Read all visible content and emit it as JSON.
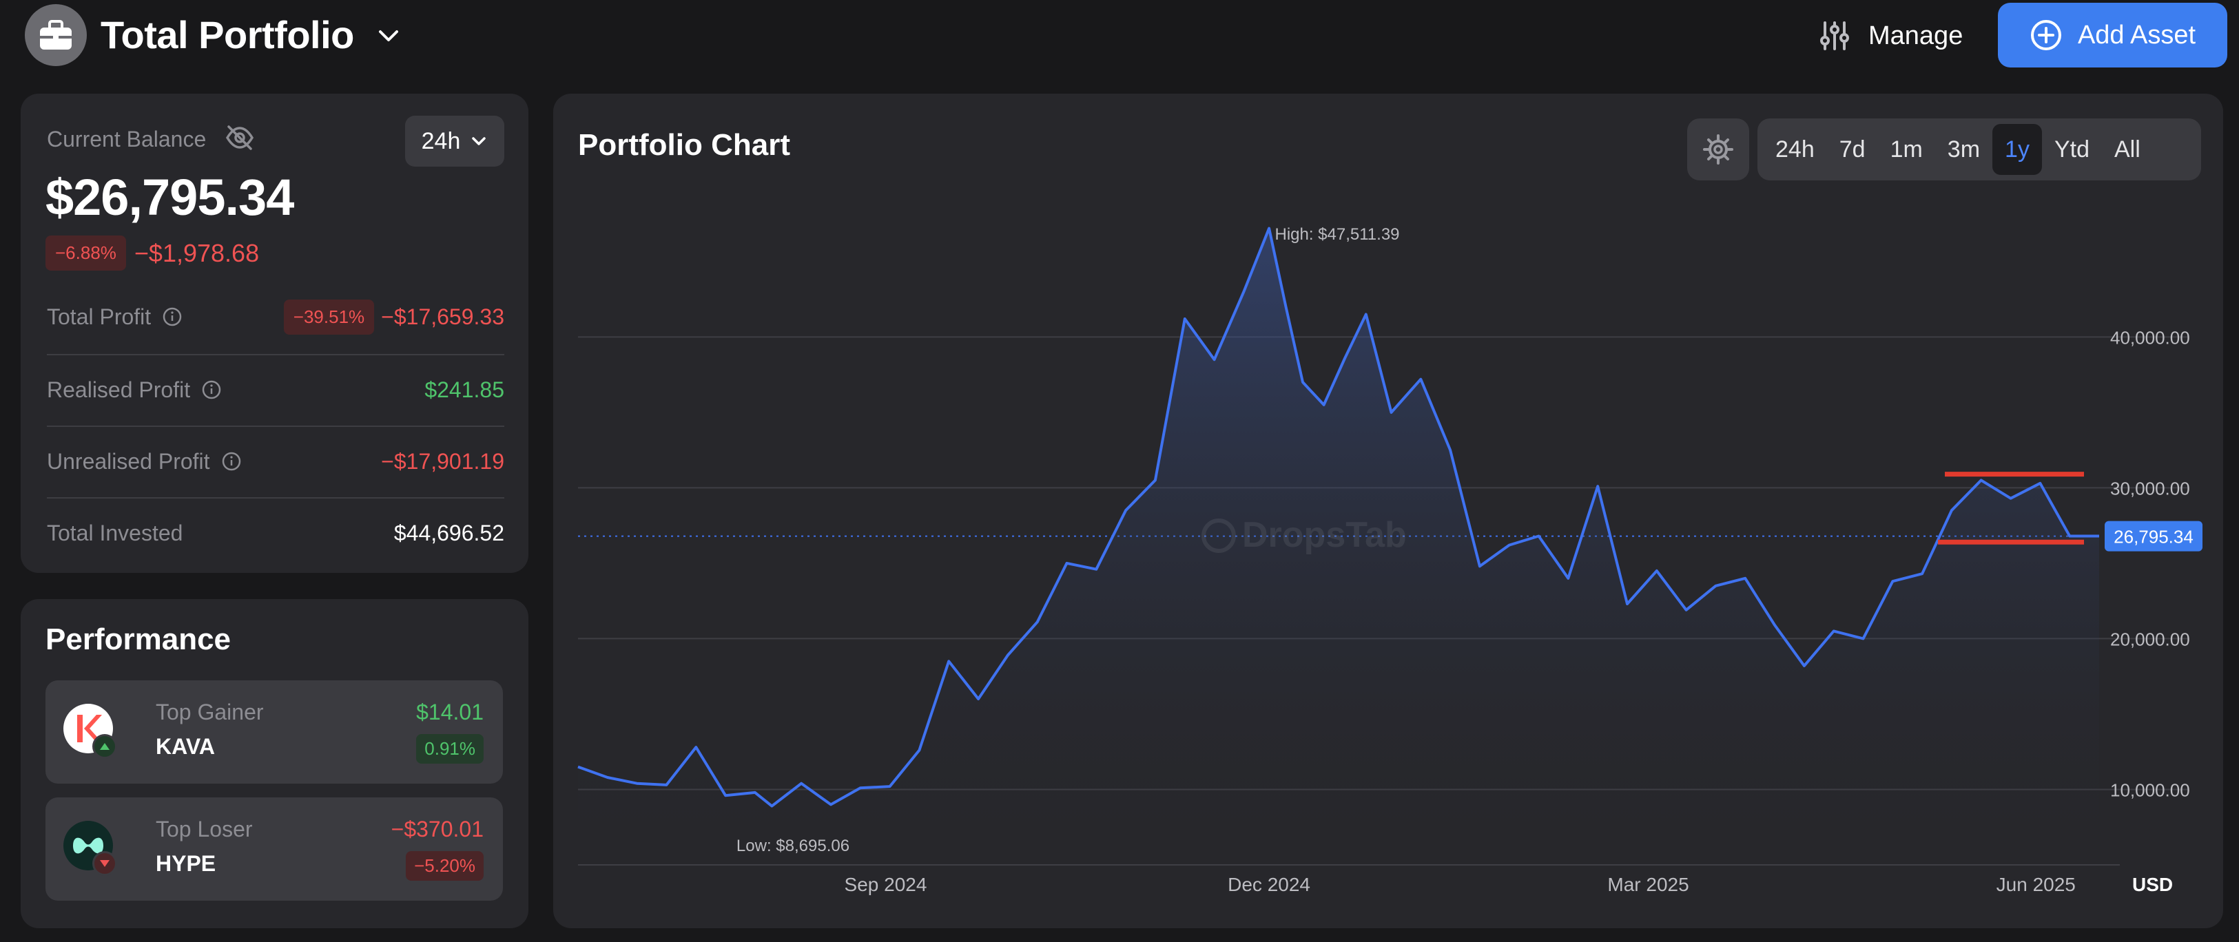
{
  "header": {
    "title": "Total Portfolio",
    "manage_label": "Manage",
    "add_asset_label": "Add Asset",
    "avatar_icon": "briefcase-icon"
  },
  "balance": {
    "label": "Current Balance",
    "range": "24h",
    "amount": "$26,795.34",
    "change_pct": "−6.88%",
    "change_amount": "−$1,978.68",
    "stats": [
      {
        "label": "Total Profit",
        "badge": "−39.51%",
        "value": "−$17,659.33",
        "tone": "neg"
      },
      {
        "label": "Realised Profit",
        "badge": "",
        "value": "$241.85",
        "tone": "pos"
      },
      {
        "label": "Unrealised Profit",
        "badge": "",
        "value": "−$17,901.19",
        "tone": "neg"
      },
      {
        "label": "Total Invested",
        "badge": "",
        "value": "$44,696.52",
        "tone": "neutral"
      }
    ]
  },
  "performance": {
    "title": "Performance",
    "items": [
      {
        "kind": "Top Gainer",
        "symbol": "KAVA",
        "value": "$14.01",
        "pct": "0.91%"
      },
      {
        "kind": "Top Loser",
        "symbol": "HYPE",
        "value": "−$370.01",
        "pct": "−5.20%"
      }
    ]
  },
  "chart_panel": {
    "title": "Portfolio Chart",
    "ranges": [
      "24h",
      "7d",
      "1m",
      "3m",
      "1y",
      "Ytd",
      "All"
    ],
    "active_range": "1y",
    "watermark": "DropsTab",
    "currency": "USD",
    "high_label": "High: $47,511.39",
    "low_label": "Low: $8,695.06",
    "current_label": "26,795.34"
  },
  "colors": {
    "accent": "#3d7ef0",
    "line": "#3f72f0",
    "negative": "#f05353",
    "positive": "#4fc46b",
    "marker": "#e23b2e"
  },
  "chart_data": {
    "type": "area",
    "x_ticks": [
      "Sep 2024",
      "Dec 2024",
      "Mar 2025",
      "Jun 2025"
    ],
    "y_ticks": [
      "10,000.00",
      "20,000.00",
      "30,000.00",
      "40,000.00"
    ],
    "ylim": [
      5000,
      47000
    ],
    "x": [
      "2024-06-20",
      "2024-06-27",
      "2024-07-04",
      "2024-07-11",
      "2024-07-18",
      "2024-07-25",
      "2024-08-01",
      "2024-08-05",
      "2024-08-12",
      "2024-08-19",
      "2024-08-26",
      "2024-09-02",
      "2024-09-09",
      "2024-09-16",
      "2024-09-23",
      "2024-09-30",
      "2024-10-07",
      "2024-10-14",
      "2024-10-21",
      "2024-10-28",
      "2024-11-04",
      "2024-11-11",
      "2024-11-18",
      "2024-11-25",
      "2024-12-01",
      "2024-12-05",
      "2024-12-09",
      "2024-12-14",
      "2024-12-19",
      "2024-12-24",
      "2024-12-30",
      "2025-01-06",
      "2025-01-13",
      "2025-01-20",
      "2025-01-27",
      "2025-02-03",
      "2025-02-10",
      "2025-02-17",
      "2025-02-24",
      "2025-03-03",
      "2025-03-10",
      "2025-03-17",
      "2025-03-24",
      "2025-03-31",
      "2025-04-07",
      "2025-04-14",
      "2025-04-21",
      "2025-04-28",
      "2025-05-05",
      "2025-05-12",
      "2025-05-19",
      "2025-05-26",
      "2025-06-02",
      "2025-06-09",
      "2025-06-16"
    ],
    "series": [
      {
        "values": [
          11500,
          10800,
          10400,
          10300,
          12800,
          9600,
          9800,
          8900,
          10400,
          9000,
          10100,
          10200,
          12600,
          18500,
          16000,
          18900,
          21100,
          25000,
          24600,
          28500,
          30500,
          41200,
          38500,
          43000,
          47200,
          42000,
          37000,
          35500,
          38600,
          41500,
          35000,
          37200,
          32500,
          24800,
          26200,
          26800,
          24000,
          30100,
          22300,
          24500,
          21900,
          23500,
          24000,
          20900,
          18200,
          20500,
          20000,
          23800,
          24300,
          28500,
          30500,
          29300,
          30300,
          26800,
          26800
        ]
      }
    ],
    "high": 47511.39,
    "low": 8695.06,
    "current": 26795.34
  }
}
